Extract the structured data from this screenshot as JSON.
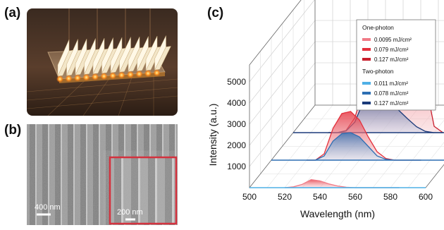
{
  "panels": {
    "a": {
      "label": "(a)"
    },
    "b": {
      "label": "(b)",
      "scalebar_main": "400 nm",
      "scalebar_inset": "200 nm"
    },
    "c": {
      "label": "(c)"
    }
  },
  "colors": {
    "one_photon": [
      "#f07b87",
      "#e4303c",
      "#c81e2c"
    ],
    "two_photon": [
      "#4fb0e6",
      "#2d6fb3",
      "#1b3a7a"
    ],
    "inset_border": "#d4323e"
  },
  "chart_data": {
    "type": "area",
    "projection": "3d-waterfall",
    "xlabel": "Wavelength (nm)",
    "ylabel": "Intensity (a.u.)",
    "xlim": [
      500,
      600
    ],
    "x_ticks": [
      "500",
      "520",
      "540",
      "560",
      "580",
      "600"
    ],
    "y_ticks": [
      "1000",
      "2000",
      "3000",
      "4000",
      "5000"
    ],
    "x": [
      520,
      525,
      530,
      535,
      540,
      545,
      550,
      555,
      560,
      565,
      570,
      575,
      580,
      585
    ],
    "legend": {
      "groups": [
        {
          "title": "One-photon",
          "entries": [
            "0.0095 mJ/cm²",
            "0.079 mJ/cm²",
            "0.127 mJ/cm²"
          ]
        },
        {
          "title": "Two-photon",
          "entries": [
            "0.011 mJ/cm²",
            "0.078 mJ/cm²",
            "0.127 mJ/cm²"
          ]
        }
      ]
    },
    "series": [
      {
        "name": "0.0095 mJ/cm²",
        "group": "One-photon",
        "depth": 0,
        "values": [
          0,
          40,
          160,
          380,
          320,
          180,
          80,
          20,
          0,
          0,
          0,
          0,
          0,
          0
        ]
      },
      {
        "name": "0.011 mJ/cm²",
        "group": "Two-photon",
        "depth": 0,
        "values": [
          0,
          0,
          0,
          0,
          0,
          0,
          0,
          0,
          0,
          0,
          0,
          0,
          0,
          0
        ]
      },
      {
        "name": "0.079 mJ/cm²",
        "group": "One-photon",
        "depth": 1,
        "values": [
          0,
          0,
          300,
          1500,
          2200,
          2300,
          1900,
          1100,
          400,
          80,
          0,
          0,
          0,
          0
        ]
      },
      {
        "name": "0.078 mJ/cm²",
        "group": "Two-photon",
        "depth": 1,
        "values": [
          0,
          0,
          200,
          900,
          1250,
          1300,
          1100,
          650,
          200,
          40,
          0,
          0,
          0,
          0
        ]
      },
      {
        "name": "0.127 mJ/cm²",
        "group": "One-photon",
        "depth": 2,
        "values": [
          0,
          0,
          100,
          700,
          2100,
          2600,
          2500,
          2000,
          1700,
          2200,
          4600,
          2400,
          300,
          0
        ]
      },
      {
        "name": "0.127 mJ/cm²",
        "group": "Two-photon",
        "depth": 2,
        "values": [
          0,
          0,
          80,
          500,
          1500,
          1900,
          1850,
          1500,
          1050,
          650,
          280,
          60,
          0,
          0
        ]
      }
    ]
  }
}
